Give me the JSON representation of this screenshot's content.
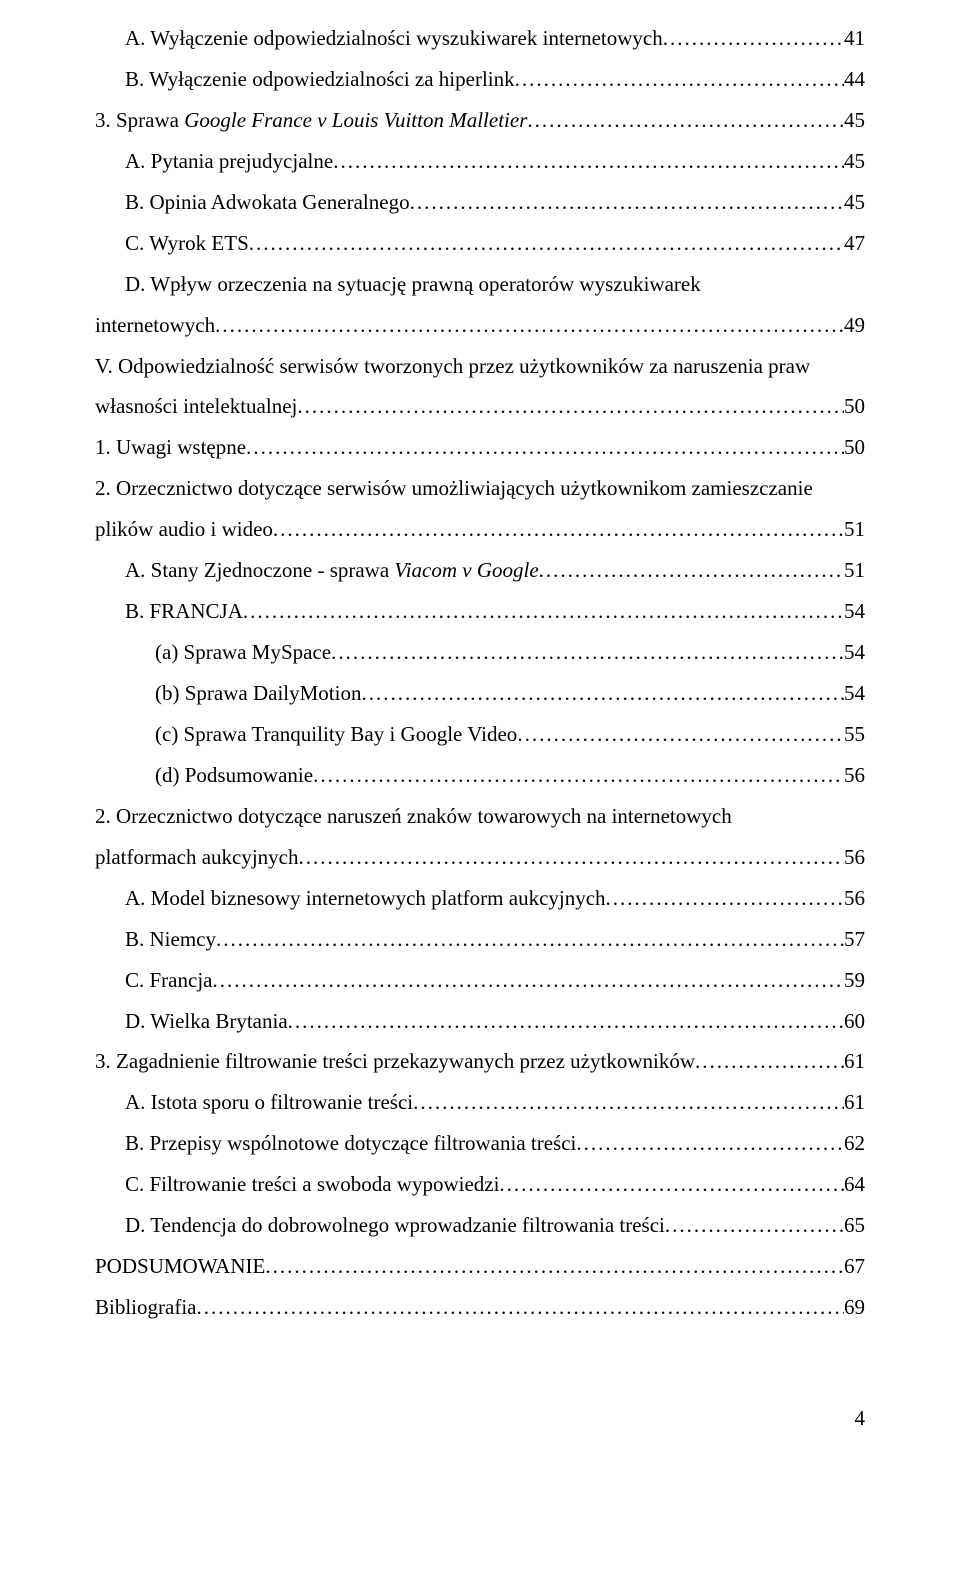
{
  "entries": [
    {
      "indent": 1,
      "text": "A. Wyłączenie odpowiedzialności wyszukiwarek internetowych",
      "page": "41"
    },
    {
      "indent": 1,
      "text": "B. Wyłączenie odpowiedzialności za hiperlink",
      "page": "44"
    },
    {
      "indent": 0,
      "pre": "3. Sprawa ",
      "italic": "Google France v Louis Vuitton Malletier",
      "post": "",
      "page": "45"
    },
    {
      "indent": 1,
      "text": "A. Pytania prejudycjalne",
      "page": "45"
    },
    {
      "indent": 1,
      "text": "B. Opinia Adwokata Generalnego",
      "page": "45"
    },
    {
      "indent": 1,
      "text": "C. Wyrok ETS",
      "page": "47"
    },
    {
      "indent": 1,
      "wrap": true,
      "text": "D. Wpływ orzeczenia na sytuację prawną operatorów wyszukiwarek internetowych",
      "page": "49"
    },
    {
      "indent": 0,
      "wrap": true,
      "text": "V. Odpowiedzialność serwisów tworzonych przez użytkowników za naruszenia praw własności intelektualnej",
      "page": "50"
    },
    {
      "indent": 0,
      "text": "1. Uwagi wstępne",
      "page": "50"
    },
    {
      "indent": 0,
      "wrap": true,
      "text": "2. Orzecznictwo dotyczące serwisów umożliwiających użytkownikom zamieszczanie plików audio i wideo",
      "page": "51"
    },
    {
      "indent": 1,
      "pre": "A. Stany Zjednoczone - sprawa ",
      "italic": "Viacom v Google",
      "post": "",
      "page": "51"
    },
    {
      "indent": 1,
      "text": "B. FRANCJA",
      "page": "54"
    },
    {
      "indent": 2,
      "text": "(a) Sprawa MySpace",
      "page": "54"
    },
    {
      "indent": 2,
      "text": "(b) Sprawa DailyMotion",
      "page": "54"
    },
    {
      "indent": 2,
      "text": "(c) Sprawa Tranquility Bay i Google Video",
      "page": "55"
    },
    {
      "indent": 2,
      "text": "(d) Podsumowanie",
      "page": "56"
    },
    {
      "indent": 0,
      "wrap": true,
      "text": "2. Orzecznictwo dotyczące naruszeń znaków towarowych na internetowych platformach aukcyjnych",
      "page": "56"
    },
    {
      "indent": 1,
      "text": "A. Model biznesowy internetowych platform aukcyjnych",
      "page": "56"
    },
    {
      "indent": 1,
      "text": "B. Niemcy",
      "page": "57"
    },
    {
      "indent": 1,
      "text": "C. Francja",
      "page": "59"
    },
    {
      "indent": 1,
      "text": "D. Wielka Brytania",
      "page": "60"
    },
    {
      "indent": 0,
      "text": "3. Zagadnienie filtrowanie treści przekazywanych przez użytkowników",
      "page": "61"
    },
    {
      "indent": 1,
      "text": "A. Istota sporu o filtrowanie treści",
      "page": "61"
    },
    {
      "indent": 1,
      "text": "B. Przepisy wspólnotowe dotyczące filtrowania treści",
      "page": "62"
    },
    {
      "indent": 1,
      "text": "C. Filtrowanie treści a swoboda wypowiedzi",
      "page": "64"
    },
    {
      "indent": 1,
      "text": "D. Tendencja do dobrowolnego wprowadzanie filtrowania treści",
      "page": "65"
    },
    {
      "indent": 0,
      "text": "PODSUMOWANIE",
      "page": "67"
    },
    {
      "indent": 0,
      "text": "Bibliografia",
      "page": "69"
    }
  ],
  "pageNumber": "4"
}
